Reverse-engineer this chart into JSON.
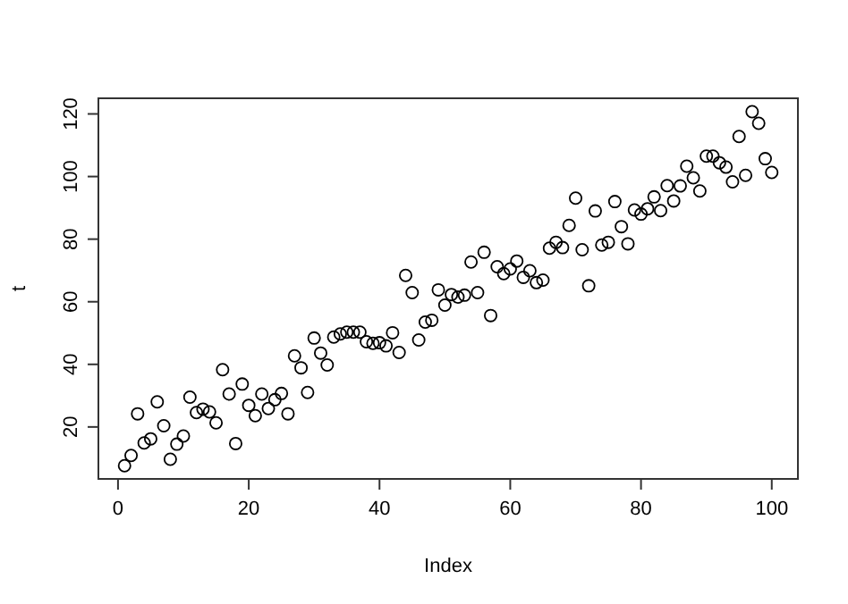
{
  "chart_data": {
    "type": "scatter",
    "xlabel": "Index",
    "ylabel": "t",
    "marker": "circle",
    "xlim": [
      -3,
      104
    ],
    "ylim": [
      3.4,
      125
    ],
    "xticks": [
      0,
      20,
      40,
      60,
      80,
      100
    ],
    "yticks": [
      20,
      40,
      60,
      80,
      100,
      120
    ],
    "series": [
      {
        "color": "#000000",
        "x": [
          1,
          2,
          3,
          4,
          5,
          6,
          7,
          8,
          9,
          10,
          11,
          12,
          13,
          14,
          15,
          16,
          17,
          18,
          19,
          20,
          21,
          22,
          23,
          24,
          25,
          26,
          27,
          28,
          29,
          30,
          31,
          32,
          33,
          34,
          35,
          36,
          37,
          38,
          39,
          40,
          41,
          42,
          43,
          44,
          45,
          46,
          47,
          48,
          49,
          50,
          51,
          52,
          53,
          54,
          55,
          56,
          57,
          58,
          59,
          60,
          61,
          62,
          63,
          64,
          65,
          66,
          67,
          68,
          69,
          70,
          71,
          72,
          73,
          74,
          75,
          76,
          77,
          78,
          79,
          80,
          81,
          82,
          83,
          84,
          85,
          86,
          87,
          88,
          89,
          90,
          91,
          92,
          93,
          94,
          95,
          96,
          97,
          98,
          99,
          100
        ],
        "values": [
          7.6,
          10.9,
          24.2,
          14.9,
          16.2,
          28,
          20.4,
          9.7,
          14.5,
          17.1,
          29.5,
          24.6,
          25.7,
          24.8,
          21.3,
          38.3,
          30.5,
          14.7,
          33.7,
          26.9,
          23.6,
          30.5,
          25.9,
          28.7,
          30.7,
          24.2,
          42.7,
          38.9,
          31,
          48.4,
          43.6,
          39.8,
          48.7,
          49.7,
          50.3,
          50.3,
          50.3,
          47.2,
          46.7,
          46.9,
          45.9,
          50.1,
          43.8,
          68.4,
          62.9,
          47.8,
          53.5,
          54.1,
          63.8,
          58.9,
          62.3,
          61.5,
          62.1,
          72.7,
          62.9,
          75.8,
          55.6,
          71.2,
          69,
          70.5,
          73,
          67.8,
          69.9,
          66.1,
          66.9,
          77.1,
          79,
          77.3,
          84.4,
          93.1,
          76.6,
          65.1,
          89,
          78.1,
          79,
          92,
          84,
          78.5,
          89.3,
          88,
          89.7,
          93.5,
          89.1,
          97.1,
          92.2,
          97,
          103.3,
          99.6,
          95.4,
          106.5,
          106.5,
          104.4,
          103,
          98.3,
          112.8,
          100.4,
          120.7,
          117,
          105.7,
          101.3
        ]
      }
    ]
  }
}
